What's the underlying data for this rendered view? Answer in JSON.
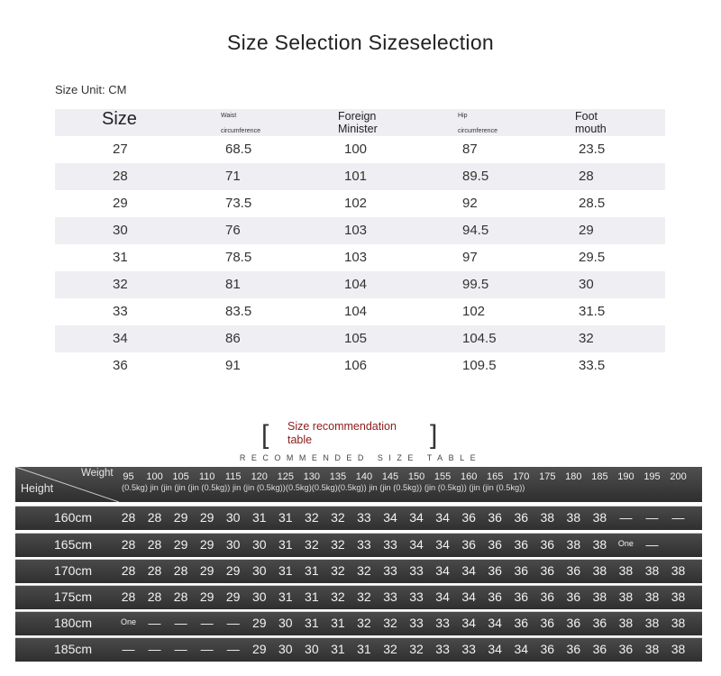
{
  "title": "Size Selection Sizeselection",
  "unit_label": "Size Unit: CM",
  "size_table": {
    "headers": {
      "size": "Size",
      "waist_l1": "Waist",
      "waist_l2": "circumference",
      "foreign_l1": "Foreign",
      "foreign_l2": "Minister",
      "hip_l1": "Hip",
      "hip_l2": "circumference",
      "foot_l1": "Foot",
      "foot_l2": "mouth"
    },
    "rows": [
      [
        "27",
        "68.5",
        "100",
        "87",
        "23.5"
      ],
      [
        "28",
        "71",
        "101",
        "89.5",
        "28"
      ],
      [
        "29",
        "73.5",
        "102",
        "92",
        "28.5"
      ],
      [
        "30",
        "76",
        "103",
        "94.5",
        "29"
      ],
      [
        "31",
        "78.5",
        "103",
        "97",
        "29.5"
      ],
      [
        "32",
        "81",
        "104",
        "99.5",
        "30"
      ],
      [
        "33",
        "83.5",
        "104",
        "102",
        "31.5"
      ],
      [
        "34",
        "86",
        "105",
        "104.5",
        "32"
      ],
      [
        "36",
        "91",
        "106",
        "109.5",
        "33.5"
      ]
    ]
  },
  "recommend": {
    "bracket_left": "[",
    "bracket_right": "]",
    "line1": "Size recommendation",
    "line2": "table",
    "subtitle": "RECOMMENDED SIZE TABLE"
  },
  "dark_table": {
    "weight_label": "Weight",
    "height_label": "Height",
    "weights": [
      "95",
      "100",
      "105",
      "110",
      "115",
      "120",
      "125",
      "130",
      "135",
      "140",
      "145",
      "150",
      "155",
      "160",
      "165",
      "170",
      "175",
      "180",
      "185",
      "190",
      "195",
      "200"
    ],
    "weight_sub": "(0.5kg) jin (jin (jin (jin (0.5kg)) jin (jin (0.5kg))(0.5kg)(0.5kg)(0.5kg)) jin (jin (0.5kg)) (jin (0.5kg)) (jin (jin (0.5kg))",
    "rows": [
      {
        "height": "160cm",
        "values": [
          "28",
          "28",
          "29",
          "29",
          "30",
          "31",
          "31",
          "32",
          "32",
          "33",
          "34",
          "34",
          "34",
          "36",
          "36",
          "36",
          "38",
          "38",
          "38",
          "—",
          "—",
          "—"
        ]
      },
      {
        "height": "165cm",
        "values": [
          "28",
          "28",
          "29",
          "29",
          "30",
          "30",
          "31",
          "32",
          "32",
          "33",
          "33",
          "34",
          "34",
          "36",
          "36",
          "36",
          "36",
          "38",
          "38",
          "One",
          "—",
          ""
        ]
      },
      {
        "height": "170cm",
        "values": [
          "28",
          "28",
          "28",
          "29",
          "29",
          "30",
          "31",
          "31",
          "32",
          "32",
          "33",
          "33",
          "34",
          "34",
          "36",
          "36",
          "36",
          "36",
          "38",
          "38",
          "38",
          "38"
        ]
      },
      {
        "height": "175cm",
        "values": [
          "28",
          "28",
          "28",
          "29",
          "29",
          "30",
          "31",
          "31",
          "32",
          "32",
          "33",
          "33",
          "34",
          "34",
          "36",
          "36",
          "36",
          "36",
          "38",
          "38",
          "38",
          "38"
        ]
      },
      {
        "height": "180cm",
        "values": [
          "One",
          "—",
          "—",
          "—",
          "—",
          "29",
          "30",
          "31",
          "31",
          "32",
          "32",
          "33",
          "33",
          "34",
          "34",
          "36",
          "36",
          "36",
          "36",
          "38",
          "38",
          "38"
        ]
      },
      {
        "height": "185cm",
        "values": [
          "—",
          "—",
          "—",
          "—",
          "—",
          "29",
          "30",
          "30",
          "31",
          "31",
          "32",
          "32",
          "33",
          "33",
          "34",
          "34",
          "36",
          "36",
          "36",
          "36",
          "38",
          "38"
        ]
      }
    ]
  }
}
